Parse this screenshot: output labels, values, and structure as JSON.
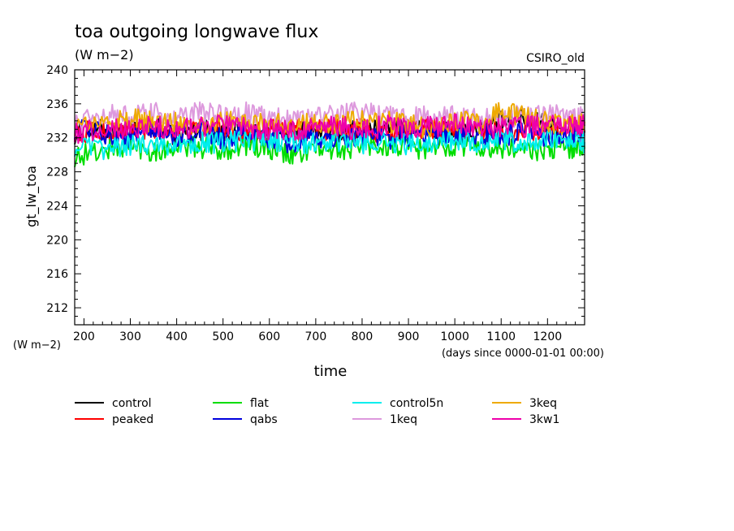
{
  "chart_data": {
    "type": "line",
    "title": "toa outgoing longwave flux",
    "subtitle": "(W m−2)",
    "dataset_label": "CSIRO_old",
    "ylabel": "gt_lw_toa",
    "yunits": "(W m−2)",
    "xlabel": "time",
    "xunits": "(days since 0000-01-01 00:00)",
    "xlim": [
      180,
      1280
    ],
    "ylim": [
      210,
      240
    ],
    "x_ticks": [
      200,
      300,
      400,
      500,
      600,
      700,
      800,
      900,
      1000,
      1100,
      1200
    ],
    "y_ticks": [
      212,
      216,
      220,
      224,
      228,
      232,
      236,
      240
    ],
    "grid": false,
    "legend_position": "bottom",
    "series": [
      {
        "name": "control",
        "color": "#000000",
        "x": [
          180,
          250,
          300,
          350,
          400,
          450,
          500,
          550,
          600,
          650,
          700,
          750,
          800,
          850,
          900,
          950,
          1000,
          1050,
          1100,
          1150,
          1200,
          1250,
          1280
        ],
        "y": [
          232.5,
          233,
          232.8,
          233.2,
          232.4,
          233,
          232.6,
          233.1,
          232.3,
          232.7,
          233,
          232.5,
          233.2,
          232.8,
          233.4,
          233,
          232.6,
          233.3,
          233.8,
          234.5,
          233.6,
          233,
          232.6
        ]
      },
      {
        "name": "peaked",
        "color": "#ff0000",
        "x": [
          180,
          250,
          300,
          350,
          400,
          450,
          500,
          550,
          600,
          650,
          700,
          750,
          800,
          850,
          900,
          950,
          1000,
          1050,
          1100,
          1150,
          1200,
          1250,
          1280
        ],
        "y": [
          232.8,
          232.6,
          233,
          232.9,
          233.1,
          232.7,
          233.2,
          232.5,
          232.9,
          232.8,
          233,
          232.9,
          233.1,
          232.6,
          233,
          233.2,
          232.8,
          233.1,
          232.7,
          233,
          232.9,
          232.7,
          232.9
        ]
      },
      {
        "name": "flat",
        "color": "#00dd00",
        "x": [
          180,
          250,
          300,
          350,
          400,
          450,
          500,
          550,
          600,
          650,
          700,
          750,
          800,
          850,
          900,
          950,
          1000,
          1050,
          1100,
          1150,
          1200,
          1250,
          1280
        ],
        "y": [
          229.8,
          230.6,
          230.9,
          230.5,
          231,
          230.8,
          230.6,
          231.2,
          230.5,
          229.9,
          230.8,
          230.6,
          231.1,
          231,
          230.8,
          230.6,
          231.2,
          231,
          230.9,
          230.4,
          230.6,
          230.9,
          230.7
        ]
      },
      {
        "name": "qabs",
        "color": "#0000dd",
        "x": [
          180,
          250,
          300,
          350,
          400,
          450,
          500,
          550,
          600,
          650,
          700,
          750,
          800,
          850,
          900,
          950,
          1000,
          1050,
          1100,
          1150,
          1200,
          1250,
          1280
        ],
        "y": [
          233,
          232.4,
          231.9,
          232.6,
          232.2,
          232.7,
          231.9,
          232.4,
          232,
          231.1,
          231.8,
          232.1,
          232.4,
          231.8,
          232.3,
          232.6,
          232.2,
          232.4,
          232.1,
          232.5,
          232.3,
          232.1,
          232.4
        ]
      },
      {
        "name": "control5n",
        "color": "#00eeee",
        "x": [
          180,
          250,
          300,
          350,
          400,
          450,
          500,
          550,
          600,
          650,
          700,
          750,
          800,
          850,
          900,
          950,
          1000,
          1050,
          1100,
          1150,
          1200,
          1250,
          1280
        ],
        "y": [
          231,
          230.6,
          231.2,
          231.4,
          231.1,
          231.6,
          231.3,
          231.8,
          231.5,
          231.7,
          231.2,
          231.6,
          231.4,
          231.7,
          231.1,
          231.6,
          231.8,
          231.5,
          231.7,
          231.3,
          231.6,
          231.8,
          231.5
        ]
      },
      {
        "name": "1keq",
        "color": "#dd99dd",
        "x": [
          180,
          250,
          300,
          350,
          400,
          450,
          500,
          550,
          600,
          650,
          700,
          750,
          800,
          850,
          900,
          950,
          1000,
          1050,
          1100,
          1150,
          1200,
          1250,
          1280
        ],
        "y": [
          233.6,
          234.8,
          234.5,
          234.9,
          234.2,
          235.1,
          234.6,
          234.9,
          234.2,
          234.6,
          234.4,
          234.8,
          235.2,
          234.6,
          234.1,
          234.8,
          234.5,
          234.2,
          234.7,
          234.4,
          234.9,
          234.3,
          234.6
        ]
      },
      {
        "name": "3keq",
        "color": "#eeaa00",
        "x": [
          180,
          250,
          300,
          350,
          400,
          450,
          500,
          550,
          600,
          650,
          700,
          750,
          800,
          850,
          900,
          950,
          1000,
          1050,
          1100,
          1150,
          1200,
          1250,
          1280
        ],
        "y": [
          233.4,
          233.9,
          234.2,
          233.8,
          234,
          233.5,
          234.1,
          233.7,
          233.9,
          233.4,
          233.8,
          233.6,
          234.1,
          233.9,
          233.5,
          233.2,
          234.2,
          233.6,
          235.2,
          234.4,
          233.8,
          233.6,
          233.9
        ]
      },
      {
        "name": "3kw1",
        "color": "#ee00aa",
        "x": [
          180,
          250,
          300,
          350,
          400,
          450,
          500,
          550,
          600,
          650,
          700,
          750,
          800,
          850,
          900,
          950,
          1000,
          1050,
          1100,
          1150,
          1200,
          1250,
          1280
        ],
        "y": [
          232.6,
          233.2,
          233.1,
          233.5,
          232.9,
          233.3,
          233.4,
          233.1,
          233,
          232.8,
          233.2,
          233.3,
          232.9,
          233.4,
          233.1,
          233.3,
          233.6,
          233.4,
          233.1,
          233.3,
          233.5,
          233.2,
          233.4
        ]
      }
    ]
  }
}
